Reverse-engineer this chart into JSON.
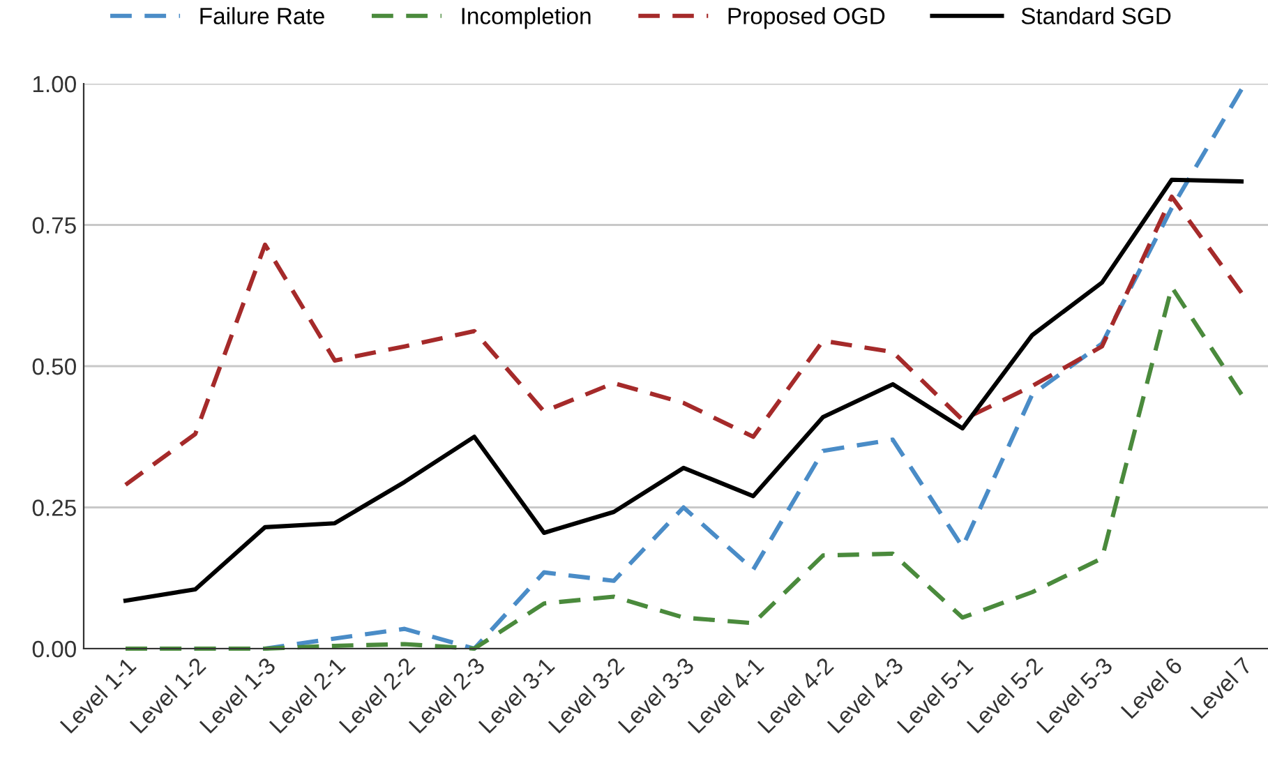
{
  "chart_data": {
    "type": "line",
    "categories": [
      "Level 1-1",
      "Level 1-2",
      "Level 1-3",
      "Level 2-1",
      "Level 2-2",
      "Level 2-3",
      "Level 3-1",
      "Level 3-2",
      "Level 3-3",
      "Level 4-1",
      "Level 4-2",
      "Level 4-3",
      "Level 5-1",
      "Level 5-2",
      "Level 5-3",
      "Level 6",
      "Level 7"
    ],
    "series": [
      {
        "name": "Failure Rate",
        "color": "#4a8cc7",
        "line_style": "dashed",
        "values": [
          0,
          0,
          0,
          0.018,
          0.035,
          0,
          0.135,
          0.12,
          0.25,
          0.14,
          0.35,
          0.37,
          0.18,
          0.45,
          0.54,
          0.78,
          0.99
        ]
      },
      {
        "name": "Incompletion",
        "color": "#4a8a3c",
        "line_style": "dashed",
        "values": [
          0,
          0,
          0,
          0.005,
          0.008,
          0,
          0.08,
          0.092,
          0.055,
          0.045,
          0.165,
          0.168,
          0.055,
          0.1,
          0.16,
          0.64,
          0.45
        ]
      },
      {
        "name": "Proposed OGD",
        "color": "#a52a2a",
        "line_style": "dashed",
        "values": [
          0.29,
          0.38,
          0.715,
          0.51,
          0.535,
          0.562,
          0.42,
          0.47,
          0.435,
          0.375,
          0.545,
          0.525,
          0.405,
          0.465,
          0.535,
          0.8,
          0.63
        ]
      },
      {
        "name": "Standard SGD",
        "color": "#000000",
        "line_style": "solid",
        "values": [
          0.085,
          0.105,
          0.215,
          0.222,
          0.295,
          0.375,
          0.205,
          0.242,
          0.32,
          0.27,
          0.41,
          0.468,
          0.39,
          0.555,
          0.648,
          0.83,
          0.827
        ]
      }
    ],
    "ylim": [
      0,
      1
    ],
    "yticks": [
      {
        "value": 0,
        "label": "0.00"
      },
      {
        "value": 0.25,
        "label": "0.25"
      },
      {
        "value": 0.5,
        "label": "0.50"
      },
      {
        "value": 0.75,
        "label": "0.75"
      },
      {
        "value": 1,
        "label": "1.00"
      }
    ],
    "grid": "y",
    "legend": "top",
    "marker": "none"
  }
}
